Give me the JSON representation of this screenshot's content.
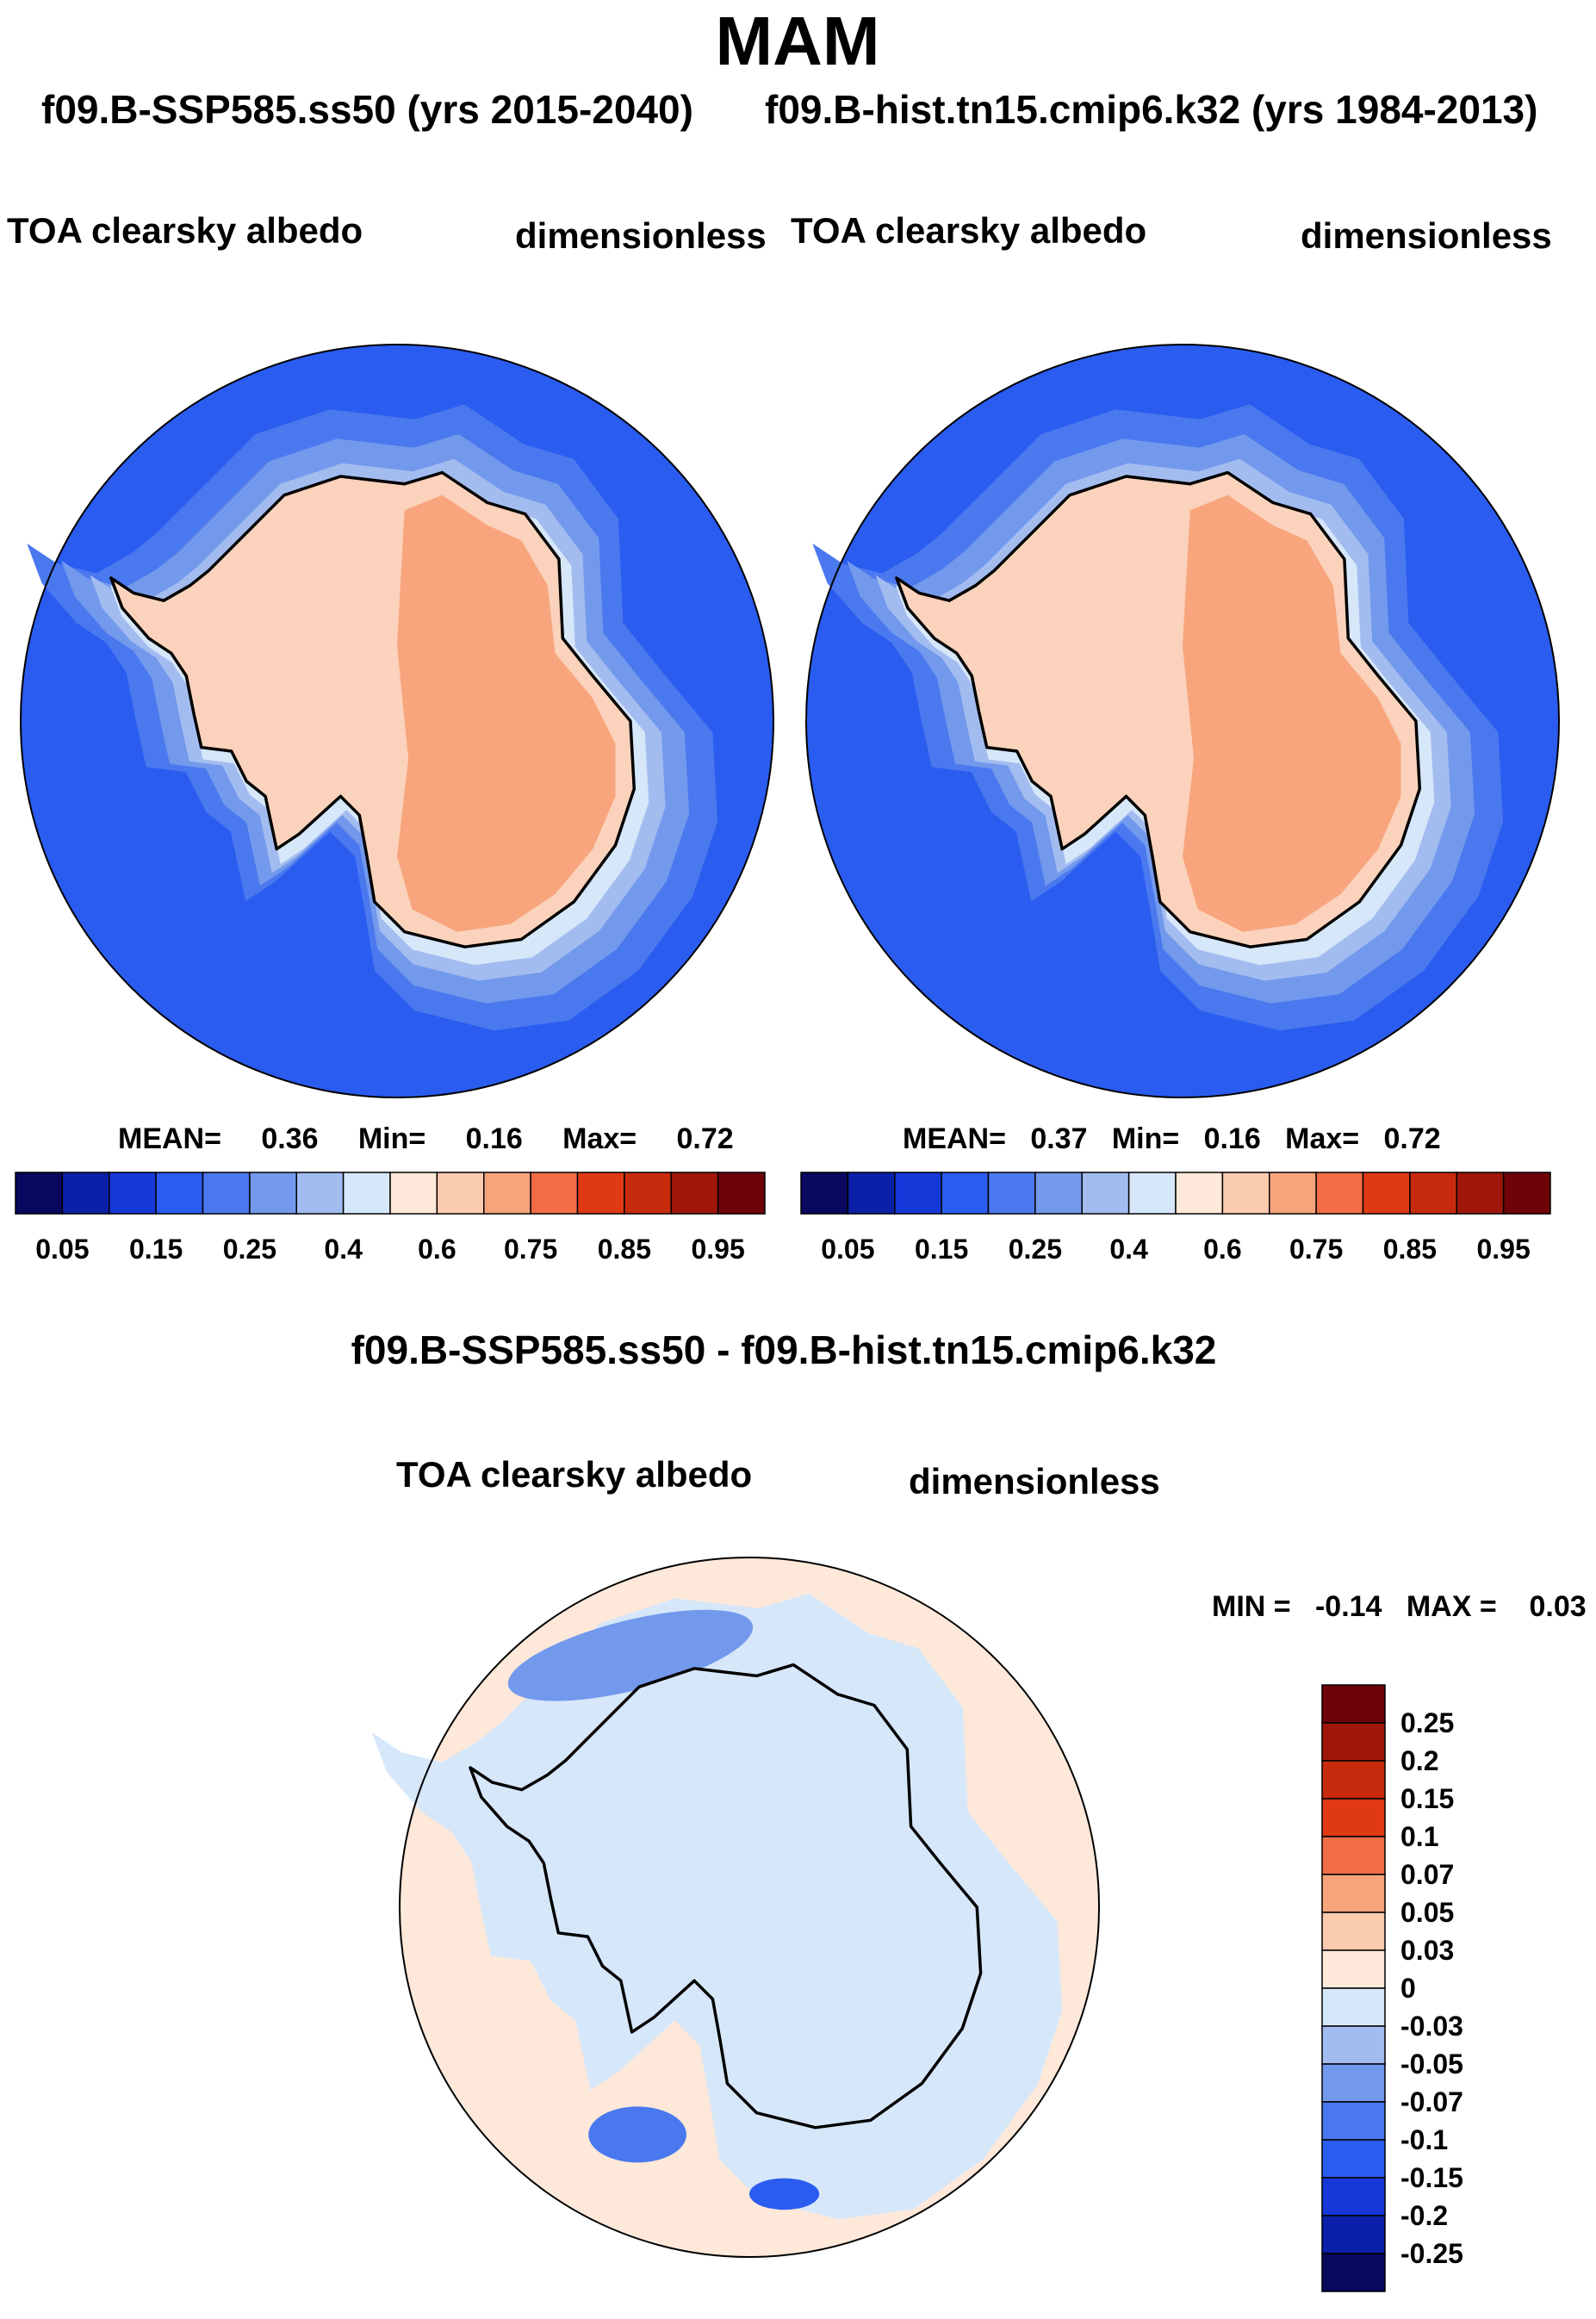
{
  "season": "MAM",
  "header": {
    "case_left": "f09.B-SSP585.ss50 (yrs 2015-2040)",
    "case_right": "f09.B-hist.tn15.cmip6.k32 (yrs 1984-2013)"
  },
  "colors": {
    "scale": [
      "#08085e",
      "#0a20a8",
      "#1638d8",
      "#2a5cf0",
      "#4a78ee",
      "#7399ec",
      "#a3bcf0",
      "#d6e7fa",
      "#fde8d9",
      "#fbcbb0",
      "#f6a47c",
      "#f06d45",
      "#e03a14",
      "#c72a0c",
      "#a0160a",
      "#6e0408"
    ],
    "ocean": "#2a5cf0",
    "land_light": "#fbd2bb",
    "land_dark": "#f8a57d",
    "diff_bg": "#fde8d9",
    "diff_ice": "#d6e7fa"
  },
  "chart_data": [
    {
      "type": "heatmap",
      "projection": "south-polar-stereographic",
      "case": "f09.B-SSP585.ss50 (yrs 2015-2040)",
      "title_left": "TOA clearsky albedo",
      "title_right": "dimensionless",
      "stats": {
        "mean_label": "MEAN=",
        "mean": "0.36",
        "min_label": "Min=",
        "min": "0.16",
        "max_label": "Max=",
        "max": "0.72"
      },
      "colorbar": {
        "orientation": "horizontal",
        "tick_labels": [
          "0.05",
          "0.15",
          "0.25",
          "0.4",
          "0.6",
          "0.75",
          "0.85",
          "0.95"
        ]
      }
    },
    {
      "type": "heatmap",
      "projection": "south-polar-stereographic",
      "case": "f09.B-hist.tn15.cmip6.k32 (yrs 1984-2013)",
      "title_left": "TOA clearsky albedo",
      "title_right": "dimensionless",
      "stats": {
        "mean_label": "MEAN=",
        "mean": "0.37",
        "min_label": "Min=",
        "min": "0.16",
        "max_label": "Max=",
        "max": "0.72"
      },
      "colorbar": {
        "orientation": "horizontal",
        "tick_labels": [
          "0.05",
          "0.15",
          "0.25",
          "0.4",
          "0.6",
          "0.75",
          "0.85",
          "0.95"
        ]
      }
    },
    {
      "type": "heatmap",
      "projection": "south-polar-stereographic",
      "title": "f09.B-SSP585.ss50 - f09.B-hist.tn15.cmip6.k32",
      "title_left": "TOA clearsky albedo",
      "title_right": "dimensionless",
      "stats": {
        "min_label": "MIN =",
        "min": "-0.14",
        "max_label": "MAX =",
        "max": "0.03"
      },
      "colorbar": {
        "orientation": "vertical",
        "tick_labels": [
          "0.25",
          "0.2",
          "0.15",
          "0.1",
          "0.07",
          "0.05",
          "0.03",
          "0",
          "-0.03",
          "-0.05",
          "-0.07",
          "-0.1",
          "-0.15",
          "-0.2",
          "-0.25"
        ]
      }
    }
  ]
}
